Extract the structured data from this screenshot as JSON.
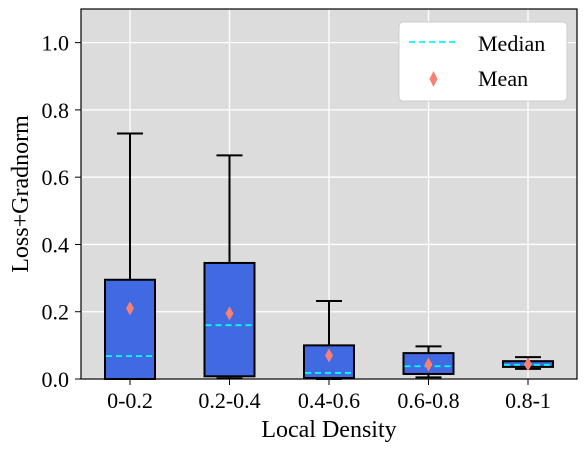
{
  "chart_data": {
    "type": "box",
    "xlabel": "Local Density",
    "ylabel": "Loss+Gradnorm",
    "ylim": [
      0,
      1.1
    ],
    "yticks": [
      "0.0",
      "0.2",
      "0.4",
      "0.6",
      "0.8",
      "1.0"
    ],
    "categories": [
      "0-0.2",
      "0.2-0.4",
      "0.4-0.6",
      "0.6-0.8",
      "0.8-1"
    ],
    "boxes": [
      {
        "whisker_low": 0.0,
        "q1": 0.0,
        "median": 0.068,
        "q3": 0.295,
        "whisker_high": 0.73,
        "mean": 0.21
      },
      {
        "whisker_low": 0.002,
        "q1": 0.008,
        "median": 0.16,
        "q3": 0.345,
        "whisker_high": 0.665,
        "mean": 0.195
      },
      {
        "whisker_low": 0.0,
        "q1": 0.003,
        "median": 0.018,
        "q3": 0.1,
        "whisker_high": 0.232,
        "mean": 0.07
      },
      {
        "whisker_low": 0.005,
        "q1": 0.015,
        "median": 0.038,
        "q3": 0.077,
        "whisker_high": 0.097,
        "mean": 0.043
      },
      {
        "whisker_low": 0.03,
        "q1": 0.036,
        "median": 0.042,
        "q3": 0.053,
        "whisker_high": 0.065,
        "mean": 0.044
      }
    ],
    "grid": true,
    "legend_position": "top-right",
    "legend": {
      "median_label": "Median",
      "mean_label": "Mean"
    },
    "colors": {
      "box_fill": "#4169e1",
      "box_edge": "#000000",
      "median_line": "#00ffff",
      "mean_marker": "#fa8072",
      "plot_bg": "#dcdcdc",
      "grid": "#ffffff"
    }
  }
}
